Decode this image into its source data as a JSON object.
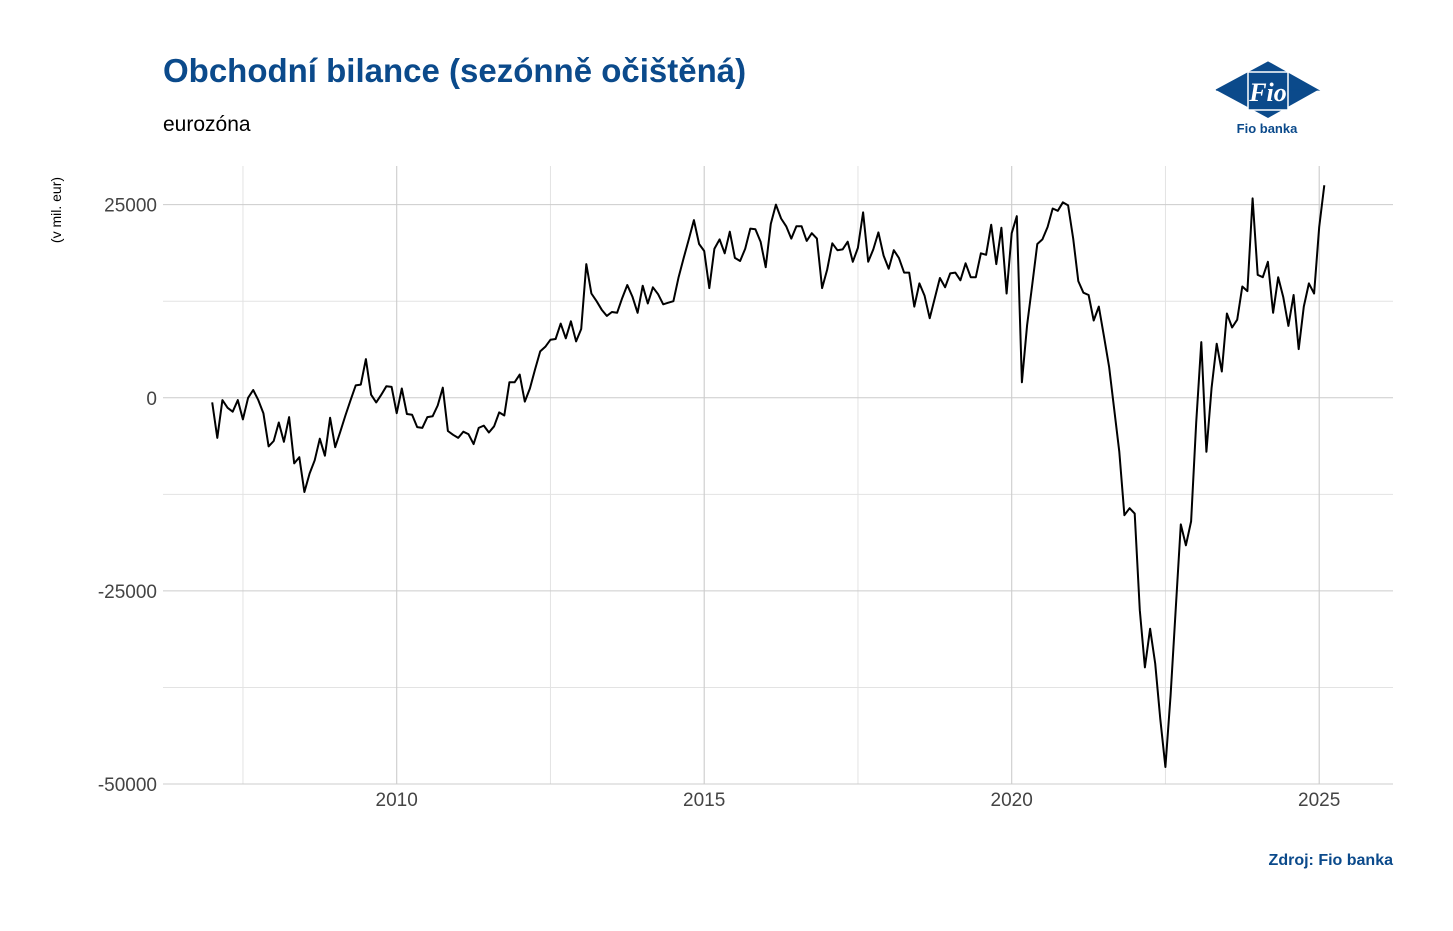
{
  "title": "Obchodní bilance (sezónně očištěná)",
  "subtitle": "eurozóna",
  "logo": {
    "mark_text": "Fio",
    "caption": "Fio banka",
    "color": "#0b4a8b"
  },
  "source": "Zdroj: Fio banka",
  "chart_data": {
    "type": "line",
    "title": "Obchodní bilance (sezónně očištěná)",
    "subtitle": "eurozóna",
    "xlabel": "",
    "ylabel": "(v mil. eur)",
    "xlim": [
      2006.2,
      2026.2
    ],
    "ylim": [
      -50000,
      30000
    ],
    "x_ticks": [
      2010,
      2015,
      2020,
      2025
    ],
    "x_tick_labels": [
      "2010",
      "2015",
      "2020",
      "2025"
    ],
    "y_ticks": [
      -50000,
      -25000,
      0,
      25000
    ],
    "y_tick_labels": [
      "-50000",
      "-25000",
      "0",
      "25000"
    ],
    "grid": true,
    "line_color": "#000000",
    "series": [
      {
        "x_start": 2007.0,
        "x_step": 0.0833333,
        "values": [
          -600,
          -5200,
          -300,
          -1300,
          -1800,
          -300,
          -2800,
          0,
          1000,
          -300,
          -2000,
          -6300,
          -5600,
          -3200,
          -5700,
          -2500,
          -8500,
          -7700,
          -12200,
          -9800,
          -8100,
          -5300,
          -7500,
          -2600,
          -6400,
          -4400,
          -2300,
          -300,
          1600,
          1700,
          5000,
          400,
          -600,
          400,
          1500,
          1400,
          -2000,
          1200,
          -2100,
          -2200,
          -3800,
          -3900,
          -2500,
          -2400,
          -1000,
          1300,
          -4300,
          -4800,
          -5200,
          -4400,
          -4700,
          -6000,
          -3900,
          -3600,
          -4500,
          -3700,
          -1900,
          -2300,
          2000,
          2000,
          3000,
          -500,
          1200,
          3700,
          6000,
          6600,
          7500,
          7600,
          9600,
          7700,
          9900,
          7300,
          8900,
          17300,
          13500,
          12500,
          11400,
          10600,
          11100,
          11000,
          12900,
          14600,
          13100,
          11000,
          14500,
          12200,
          14300,
          13400,
          12100,
          12300,
          12500,
          15600,
          18100,
          20500,
          23000,
          19900,
          19000,
          14200,
          19300,
          20500,
          18700,
          21500,
          18100,
          17700,
          19300,
          21900,
          21800,
          20200,
          16900,
          22500,
          25000,
          23200,
          22200,
          20600,
          22200,
          22200,
          20300,
          21300,
          20600,
          14200,
          16600,
          20000,
          19100,
          19200,
          20200,
          17600,
          19400,
          24000,
          17600,
          19200,
          21400,
          18400,
          16700,
          19100,
          18100,
          16200,
          16200,
          11800,
          14800,
          13200,
          10300,
          12900,
          15500,
          14300,
          16100,
          16200,
          15200,
          17400,
          15600,
          15600,
          18700,
          18500,
          22400,
          17300,
          22000,
          13500,
          21300,
          23500,
          2000,
          9400,
          14600,
          19900,
          20500,
          22100,
          24500,
          24200,
          25300,
          24900,
          20600,
          15100,
          13600,
          13300,
          10000,
          11800,
          8000,
          4000,
          -1500,
          -7000,
          -15200,
          -14300,
          -15000,
          -27500,
          -34900,
          -29900,
          -34400,
          -41600,
          -47800,
          -38500,
          -27400,
          -16400,
          -19100,
          -16000,
          -3200,
          7200,
          -7000,
          1300,
          7000,
          3400,
          10900,
          9100,
          10100,
          14400,
          13800,
          25800,
          15900,
          15600,
          17600,
          11000,
          15600,
          13000,
          9300,
          13300,
          6300,
          11800,
          14800,
          13500,
          22100,
          27500
        ]
      }
    ]
  }
}
